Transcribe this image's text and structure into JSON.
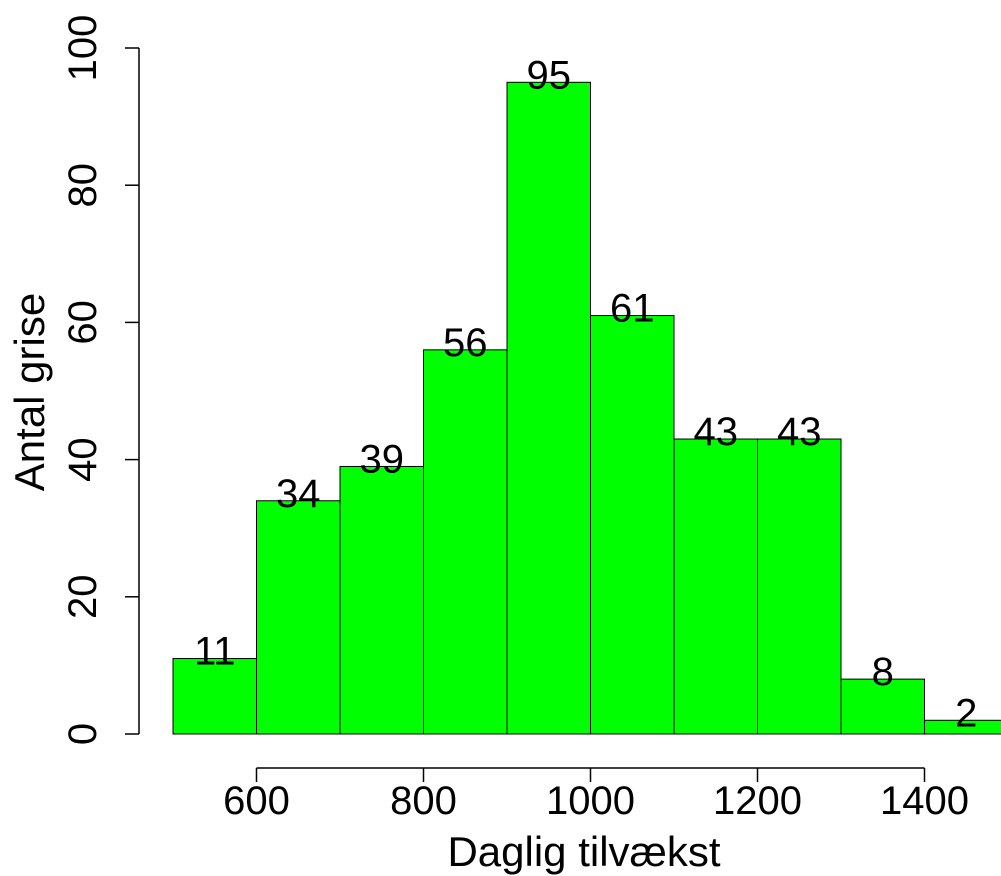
{
  "chart_data": {
    "type": "bar",
    "bins": [
      [
        500,
        600
      ],
      [
        600,
        700
      ],
      [
        700,
        800
      ],
      [
        800,
        900
      ],
      [
        900,
        1000
      ],
      [
        1000,
        1100
      ],
      [
        1100,
        1200
      ],
      [
        1200,
        1300
      ],
      [
        1300,
        1400
      ],
      [
        1400,
        1500
      ]
    ],
    "values": [
      11,
      34,
      39,
      56,
      95,
      61,
      43,
      43,
      8,
      2
    ],
    "value_labels": [
      "11",
      "34",
      "39",
      "56",
      "95",
      "61",
      "43",
      "43",
      "8",
      "2"
    ],
    "xlabel": "Daglig tilvækst",
    "ylabel": "Antal grise",
    "xlim": [
      500,
      1500
    ],
    "ylim": [
      0,
      100
    ],
    "x_ticks": [
      600,
      800,
      1000,
      1200,
      1400
    ],
    "x_tick_labels": [
      "600",
      "800",
      "1000",
      "1200",
      "1400"
    ],
    "y_ticks": [
      0,
      20,
      40,
      60,
      80,
      100
    ],
    "y_tick_labels": [
      "0",
      "20",
      "40",
      "60",
      "80",
      "100"
    ],
    "bar_color": "#00ff00",
    "grid": false,
    "legend": "none"
  }
}
